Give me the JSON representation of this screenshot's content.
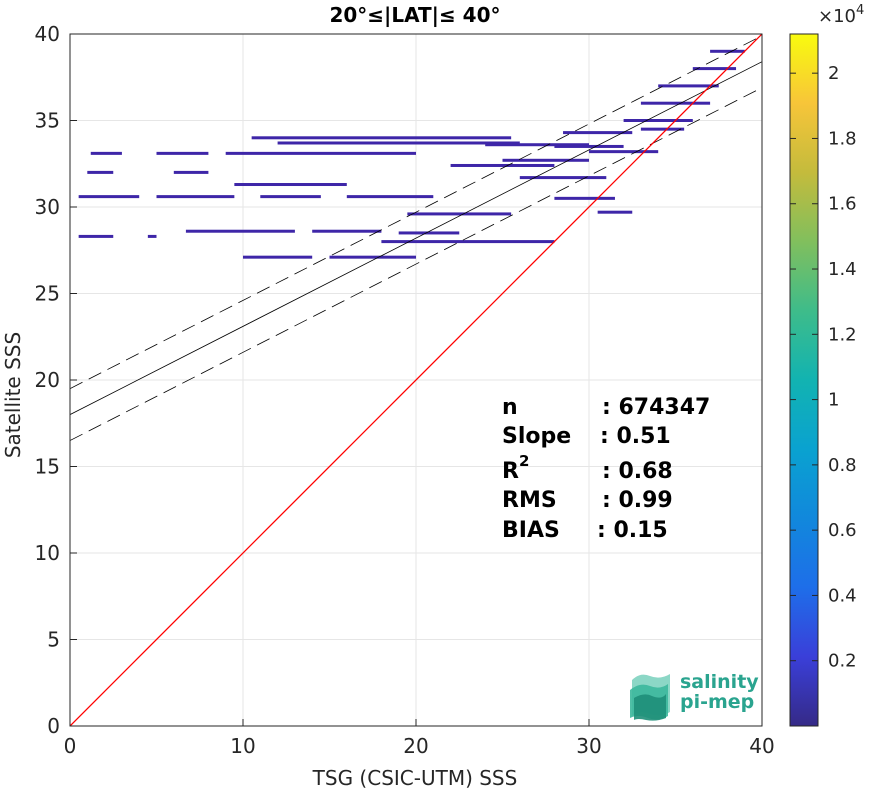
{
  "chart_data": {
    "type": "scatter",
    "subtype": "density-heatmap",
    "title": "20°≤|LAT|≤ 40°",
    "xlabel": "TSG (CSIC-UTM) SSS",
    "ylabel": "Satellite SSS",
    "xlim": [
      0,
      40
    ],
    "ylim": [
      0,
      40
    ],
    "xticks": [
      "0",
      "10",
      "20",
      "30",
      "40"
    ],
    "yticks": [
      "0",
      "5",
      "10",
      "15",
      "20",
      "25",
      "30",
      "35",
      "40"
    ],
    "grid": true,
    "lines": {
      "identity": {
        "x": [
          0,
          40
        ],
        "y": [
          0,
          40
        ],
        "color": "#ff0000"
      },
      "fit": {
        "x": [
          0,
          40
        ],
        "y": [
          18.0,
          38.4
        ],
        "color": "#000000"
      },
      "fit_upper": {
        "x": [
          0,
          40
        ],
        "y": [
          19.5,
          39.9
        ],
        "color": "#000000",
        "dash": true
      },
      "fit_lower": {
        "x": [
          0,
          40
        ],
        "y": [
          16.5,
          36.9
        ],
        "color": "#000000",
        "dash": true
      }
    },
    "density_segments": [
      {
        "x1": 1.2,
        "x2": 3.0,
        "y": 33.1
      },
      {
        "x1": 5.0,
        "x2": 8.0,
        "y": 33.1
      },
      {
        "x1": 1.0,
        "x2": 2.5,
        "y": 32.0
      },
      {
        "x1": 6.0,
        "x2": 8.0,
        "y": 32.0
      },
      {
        "x1": 0.5,
        "x2": 4.0,
        "y": 30.6
      },
      {
        "x1": 5.0,
        "x2": 9.5,
        "y": 30.6
      },
      {
        "x1": 11.0,
        "x2": 14.5,
        "y": 30.6
      },
      {
        "x1": 16.0,
        "x2": 21.0,
        "y": 30.6
      },
      {
        "x1": 0.5,
        "x2": 2.5,
        "y": 28.3
      },
      {
        "x1": 4.5,
        "x2": 5.0,
        "y": 28.3
      },
      {
        "x1": 6.7,
        "x2": 13.0,
        "y": 28.6
      },
      {
        "x1": 14.0,
        "x2": 18.0,
        "y": 28.6
      },
      {
        "x1": 19.0,
        "x2": 22.5,
        "y": 28.5
      },
      {
        "x1": 10.0,
        "x2": 14.0,
        "y": 27.1
      },
      {
        "x1": 15.0,
        "x2": 20.0,
        "y": 27.1
      },
      {
        "x1": 9.5,
        "x2": 16.0,
        "y": 31.3
      },
      {
        "x1": 9.0,
        "x2": 20.0,
        "y": 33.1
      },
      {
        "x1": 12.0,
        "x2": 26.0,
        "y": 33.7
      },
      {
        "x1": 10.5,
        "x2": 25.5,
        "y": 34.0
      },
      {
        "x1": 19.5,
        "x2": 25.5,
        "y": 29.6
      },
      {
        "x1": 18.0,
        "x2": 28.0,
        "y": 28.0
      },
      {
        "x1": 22.0,
        "x2": 28.0,
        "y": 32.4
      },
      {
        "x1": 24.0,
        "x2": 30.0,
        "y": 33.6
      },
      {
        "x1": 26.0,
        "x2": 31.0,
        "y": 31.7
      },
      {
        "x1": 28.0,
        "x2": 31.5,
        "y": 30.5
      },
      {
        "x1": 30.5,
        "x2": 32.5,
        "y": 29.7
      },
      {
        "x1": 28.5,
        "x2": 32.5,
        "y": 34.3
      },
      {
        "x1": 28.0,
        "x2": 32.0,
        "y": 33.5
      },
      {
        "x1": 30.0,
        "x2": 34.0,
        "y": 33.2
      },
      {
        "x1": 32.0,
        "x2": 36.0,
        "y": 35.0
      },
      {
        "x1": 33.0,
        "x2": 37.0,
        "y": 36.0
      },
      {
        "x1": 34.0,
        "x2": 37.5,
        "y": 37.0
      },
      {
        "x1": 36.0,
        "x2": 38.5,
        "y": 38.0
      },
      {
        "x1": 37.0,
        "x2": 39.0,
        "y": 39.0
      },
      {
        "x1": 25.0,
        "x2": 30.0,
        "y": 32.7
      },
      {
        "x1": 33.0,
        "x2": 35.5,
        "y": 34.5
      }
    ],
    "colorbar": {
      "range": [
        0,
        21200
      ],
      "ticks": [
        "0.2",
        "0.4",
        "0.6",
        "0.8",
        "1",
        "1.2",
        "1.4",
        "1.6",
        "1.8",
        "2"
      ],
      "tick_values": [
        0.2,
        0.4,
        0.6,
        0.8,
        1.0,
        1.2,
        1.4,
        1.6,
        1.8,
        2.0
      ],
      "exponent_label": "×10",
      "exponent_power": "4",
      "colormap": "parula"
    },
    "stats": {
      "n_label": "n",
      "n_value": ": 674347",
      "slope_label": "Slope",
      "slope_value": ": 0.51",
      "r2_label": "R",
      "r2_sup": "2",
      "r2_value": ": 0.68",
      "rms_label": "RMS",
      "rms_value": ": 0.99",
      "bias_label": "BIAS",
      "bias_value": ": 0.15"
    }
  },
  "logo": {
    "line1": "salinity",
    "line2": "pi-mep"
  },
  "colors": {
    "identity": "#ff0000",
    "points": "#3e26a8",
    "logo": "#2aa48f"
  }
}
